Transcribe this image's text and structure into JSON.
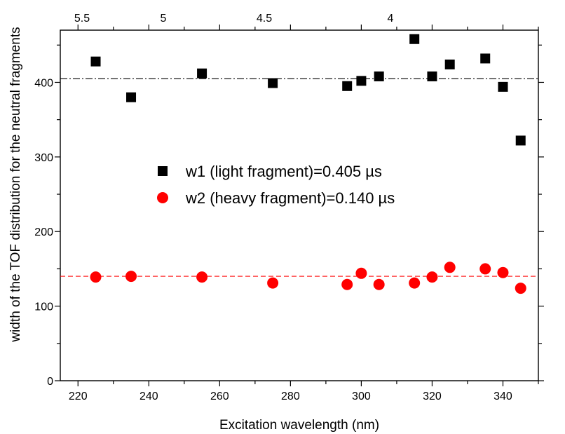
{
  "chart_data": {
    "type": "scatter",
    "xlabel": "Excitation wavelength (nm)",
    "ylabel": "width of the TOF distribution for the neutral fragments",
    "xlim": [
      215,
      350
    ],
    "ylim": [
      0,
      470
    ],
    "x_ticks_major": [
      220,
      240,
      260,
      280,
      300,
      320,
      340
    ],
    "y_ticks_major": [
      0,
      100,
      200,
      300,
      400
    ],
    "top_axis_ticks": [
      5.5,
      5,
      4.5,
      4
    ],
    "top_axis_tick_labels": [
      "5.5",
      "5",
      "4.5",
      "4"
    ],
    "grid": false,
    "legend_position": "center-right",
    "series": [
      {
        "name": "w1 (light fragment)=0.405 µs",
        "marker": "square",
        "color": "#000000",
        "mean": 405,
        "mean_line_style": "dash-dot",
        "x": [
          225,
          235,
          255,
          275,
          296,
          300,
          305,
          315,
          320,
          325,
          335,
          340,
          345
        ],
        "y": [
          428,
          380,
          412,
          399,
          395,
          402,
          408,
          458,
          408,
          424,
          432,
          394,
          322
        ]
      },
      {
        "name": "w2 (heavy fragment)=0.140 µs",
        "marker": "circle",
        "color": "#ff0000",
        "mean": 140,
        "mean_line_style": "dashed",
        "x": [
          225,
          235,
          255,
          275,
          296,
          300,
          305,
          315,
          320,
          325,
          335,
          340,
          345
        ],
        "y": [
          139,
          140,
          139,
          131,
          129,
          144,
          129,
          131,
          139,
          152,
          150,
          145,
          124
        ]
      }
    ]
  }
}
